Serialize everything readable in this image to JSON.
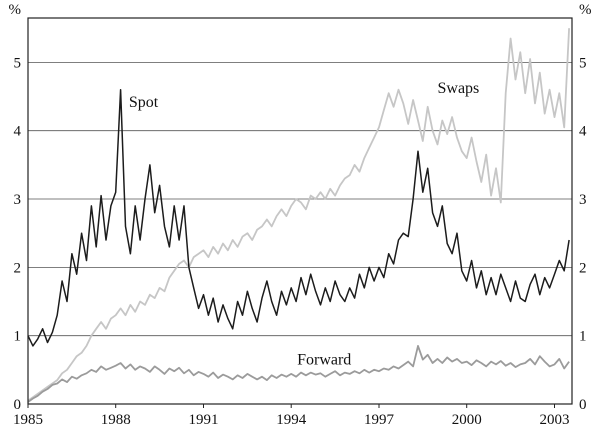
{
  "chart_data": {
    "type": "line",
    "title": "",
    "unit_label_left": "%",
    "unit_label_right": "%",
    "x_start": 1985,
    "x_step": 0.166667,
    "xlim": [
      1985,
      2003.6
    ],
    "ylim": [
      0,
      5.65
    ],
    "yticks": [
      0,
      1,
      2,
      3,
      4,
      5
    ],
    "ytick_labels": [
      "0",
      "1",
      "2",
      "3",
      "4",
      "5"
    ],
    "xticks": [
      1985,
      1988,
      1991,
      1994,
      1997,
      2000,
      2003
    ],
    "xtick_labels": [
      "1985",
      "1988",
      "1991",
      "1994",
      "1997",
      "2000",
      "2003"
    ],
    "grid": true,
    "legend_position": "inline-annotations",
    "colors": {
      "frame": "#222222",
      "grid": "#555555",
      "text": "#111111"
    },
    "series": [
      {
        "name": "Spot",
        "color": "#1c1c1c",
        "stroke_width": 1.5,
        "label_x": 1988.45,
        "label_y": 4.35,
        "values": [
          1.0,
          0.85,
          0.95,
          1.1,
          0.9,
          1.05,
          1.3,
          1.8,
          1.5,
          2.2,
          1.9,
          2.5,
          2.1,
          2.9,
          2.3,
          3.05,
          2.4,
          2.9,
          3.1,
          4.6,
          2.6,
          2.2,
          2.9,
          2.4,
          3.0,
          3.5,
          2.8,
          3.2,
          2.6,
          2.3,
          2.9,
          2.4,
          2.9,
          2.0,
          1.7,
          1.4,
          1.6,
          1.3,
          1.55,
          1.2,
          1.45,
          1.25,
          1.1,
          1.5,
          1.3,
          1.65,
          1.4,
          1.2,
          1.55,
          1.8,
          1.5,
          1.3,
          1.65,
          1.45,
          1.7,
          1.5,
          1.85,
          1.6,
          1.9,
          1.65,
          1.45,
          1.7,
          1.5,
          1.8,
          1.6,
          1.5,
          1.7,
          1.55,
          1.9,
          1.7,
          2.0,
          1.8,
          2.0,
          1.85,
          2.2,
          2.05,
          2.4,
          2.5,
          2.45,
          3.0,
          3.7,
          3.1,
          3.45,
          2.8,
          2.6,
          2.9,
          2.35,
          2.2,
          2.5,
          1.95,
          1.8,
          2.1,
          1.7,
          1.95,
          1.6,
          1.85,
          1.6,
          1.9,
          1.7,
          1.5,
          1.8,
          1.55,
          1.5,
          1.75,
          1.9,
          1.6,
          1.85,
          1.7,
          1.9,
          2.1,
          1.95,
          2.4
        ]
      },
      {
        "name": "Swaps",
        "color": "#c6c6c6",
        "stroke_width": 1.8,
        "label_x": 1999.0,
        "label_y": 4.55,
        "values": [
          0.05,
          0.1,
          0.15,
          0.2,
          0.25,
          0.3,
          0.35,
          0.45,
          0.5,
          0.6,
          0.7,
          0.75,
          0.85,
          1.0,
          1.1,
          1.2,
          1.1,
          1.25,
          1.3,
          1.4,
          1.3,
          1.45,
          1.35,
          1.5,
          1.45,
          1.6,
          1.55,
          1.7,
          1.65,
          1.85,
          1.95,
          2.05,
          2.1,
          2.0,
          2.15,
          2.2,
          2.25,
          2.15,
          2.3,
          2.2,
          2.35,
          2.25,
          2.4,
          2.3,
          2.45,
          2.5,
          2.4,
          2.55,
          2.6,
          2.7,
          2.6,
          2.75,
          2.85,
          2.75,
          2.9,
          3.0,
          2.95,
          2.85,
          3.05,
          3.0,
          3.1,
          3.0,
          3.15,
          3.05,
          3.2,
          3.3,
          3.35,
          3.5,
          3.4,
          3.6,
          3.75,
          3.9,
          4.05,
          4.3,
          4.55,
          4.35,
          4.6,
          4.4,
          4.1,
          4.45,
          4.15,
          3.85,
          4.35,
          4.0,
          3.8,
          4.15,
          3.95,
          4.2,
          3.9,
          3.7,
          3.6,
          3.9,
          3.55,
          3.25,
          3.65,
          3.05,
          3.45,
          2.95,
          4.55,
          5.35,
          4.75,
          5.15,
          4.55,
          5.05,
          4.4,
          4.85,
          4.25,
          4.6,
          4.2,
          4.55,
          4.05,
          5.5
        ]
      },
      {
        "name": "Forward",
        "color": "#9b9b9b",
        "stroke_width": 1.8,
        "label_x": 1994.2,
        "label_y": 0.58,
        "values": [
          0.03,
          0.08,
          0.12,
          0.18,
          0.22,
          0.28,
          0.3,
          0.36,
          0.32,
          0.4,
          0.37,
          0.42,
          0.45,
          0.5,
          0.47,
          0.55,
          0.5,
          0.53,
          0.56,
          0.6,
          0.52,
          0.58,
          0.5,
          0.55,
          0.52,
          0.47,
          0.55,
          0.5,
          0.44,
          0.52,
          0.48,
          0.53,
          0.45,
          0.5,
          0.42,
          0.47,
          0.44,
          0.4,
          0.46,
          0.38,
          0.43,
          0.4,
          0.36,
          0.42,
          0.38,
          0.44,
          0.4,
          0.36,
          0.4,
          0.35,
          0.42,
          0.38,
          0.43,
          0.4,
          0.44,
          0.4,
          0.46,
          0.42,
          0.46,
          0.43,
          0.45,
          0.4,
          0.44,
          0.48,
          0.42,
          0.46,
          0.44,
          0.48,
          0.45,
          0.5,
          0.46,
          0.5,
          0.48,
          0.52,
          0.5,
          0.55,
          0.52,
          0.57,
          0.62,
          0.55,
          0.85,
          0.65,
          0.72,
          0.6,
          0.66,
          0.6,
          0.68,
          0.62,
          0.66,
          0.6,
          0.62,
          0.57,
          0.64,
          0.6,
          0.55,
          0.62,
          0.58,
          0.63,
          0.56,
          0.6,
          0.54,
          0.58,
          0.6,
          0.66,
          0.58,
          0.7,
          0.62,
          0.55,
          0.58,
          0.66,
          0.52,
          0.62
        ]
      }
    ]
  }
}
